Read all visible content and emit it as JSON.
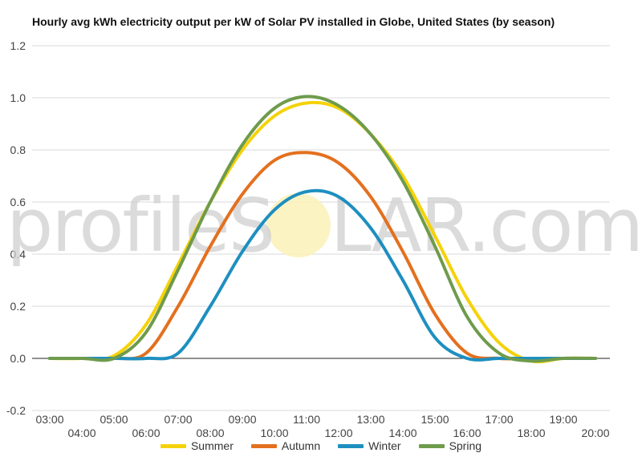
{
  "chart_data": {
    "type": "line",
    "title": "Hourly avg kWh electricity output per kW of Solar PV installed in Globe, United States (by season)",
    "xlabel": "",
    "ylabel": "",
    "ylim": [
      -0.2,
      1.2
    ],
    "yticks": [
      "-0.2",
      "0.0",
      "0.2",
      "0.4",
      "0.6",
      "0.8",
      "1.0",
      "1.2"
    ],
    "categories": [
      "03:00",
      "04:00",
      "05:00",
      "06:00",
      "07:00",
      "08:00",
      "09:00",
      "10:00",
      "11:00",
      "12:00",
      "13:00",
      "14:00",
      "15:00",
      "16:00",
      "17:00",
      "18:00",
      "19:00",
      "20:00"
    ],
    "grid": true,
    "legend_position": "bottom",
    "series": [
      {
        "name": "Summer",
        "color": "#f5d20a",
        "values": [
          0,
          0,
          0.01,
          0.13,
          0.36,
          0.6,
          0.8,
          0.93,
          0.98,
          0.96,
          0.86,
          0.7,
          0.47,
          0.23,
          0.06,
          -0.01,
          0,
          0
        ]
      },
      {
        "name": "Autumn",
        "color": "#e3701f",
        "values": [
          0,
          0,
          0,
          0.02,
          0.2,
          0.43,
          0.63,
          0.76,
          0.79,
          0.75,
          0.62,
          0.41,
          0.17,
          0.02,
          0,
          0,
          0,
          0
        ]
      },
      {
        "name": "Winter",
        "color": "#1e8fc0",
        "values": [
          0,
          0,
          0,
          0,
          0.02,
          0.2,
          0.41,
          0.57,
          0.64,
          0.62,
          0.5,
          0.3,
          0.08,
          0,
          0,
          0,
          0,
          0
        ]
      },
      {
        "name": "Spring",
        "color": "#6e9b4c",
        "values": [
          0,
          0,
          0,
          0.1,
          0.34,
          0.6,
          0.82,
          0.96,
          1.005,
          0.97,
          0.86,
          0.68,
          0.43,
          0.16,
          0.02,
          -0.01,
          0,
          0
        ]
      }
    ]
  },
  "watermark": {
    "prefix": "profile",
    "s": "S",
    "o": "O",
    "suffix": "LAR.com"
  }
}
